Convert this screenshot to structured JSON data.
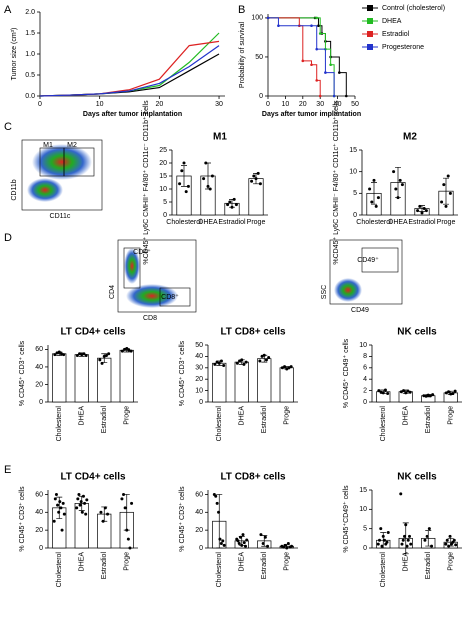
{
  "panels": [
    "A",
    "B",
    "C",
    "D",
    "E"
  ],
  "flow_labels": [
    "M1",
    "M2",
    "CD11b",
    "CD11c",
    "CD4⁺",
    "CD8⁺",
    "CD4",
    "CD8",
    "CD49⁺",
    "SSC",
    "CD49"
  ],
  "chart_data": [
    {
      "type": "line",
      "ylabel": "Tumor size (cm³)",
      "xlabel": "Days after tumor implantation",
      "x": [
        0,
        5,
        10,
        15,
        20,
        25,
        30
      ],
      "xlim": [
        0,
        31
      ],
      "xticks": [
        0,
        10,
        20,
        30
      ],
      "ylim": [
        0,
        2
      ],
      "yticks": [
        {
          "value": 0,
          "label": "0.0"
        },
        0.5,
        {
          "value": 1,
          "label": "1.0"
        },
        1.5,
        {
          "value": 2,
          "label": "2.0"
        }
      ],
      "series": [
        {
          "name": "Control (cholesterol)",
          "color": "#000000",
          "values": [
            0,
            0.02,
            0.05,
            0.1,
            0.2,
            0.6,
            1.0
          ]
        },
        {
          "name": "DHEA",
          "color": "#22bb22",
          "values": [
            0,
            0.02,
            0.05,
            0.12,
            0.25,
            0.8,
            1.5
          ]
        },
        {
          "name": "Estradiol",
          "color": "#dd2222",
          "values": [
            0,
            0.02,
            0.05,
            0.15,
            0.4,
            1.2,
            1.3
          ]
        },
        {
          "name": "Progesterone",
          "color": "#2233cc",
          "values": [
            0,
            0.02,
            0.05,
            0.12,
            0.3,
            0.7,
            1.2
          ]
        }
      ]
    },
    {
      "type": "step",
      "ylabel": "Probability of survival",
      "xlabel": "Days after tumor implantation",
      "xlim": [
        0,
        50
      ],
      "xticks": [
        0,
        10,
        20,
        30,
        40,
        50
      ],
      "ylim": [
        0,
        105
      ],
      "yticks": [
        0,
        50,
        100
      ],
      "series": [
        {
          "name": "Control (cholesterol)",
          "color": "#000000",
          "x": [
            0,
            27,
            29,
            31,
            33,
            36,
            41,
            45
          ],
          "values": [
            100,
            100,
            90,
            80,
            70,
            50,
            30,
            0
          ]
        },
        {
          "name": "DHEA",
          "color": "#22bb22",
          "x": [
            0,
            28,
            30,
            33,
            36,
            38
          ],
          "values": [
            100,
            100,
            80,
            60,
            40,
            0
          ]
        },
        {
          "name": "Estradiol",
          "color": "#dd2222",
          "x": [
            0,
            18,
            20,
            25,
            28,
            30
          ],
          "values": [
            100,
            90,
            45,
            40,
            20,
            0
          ]
        },
        {
          "name": "Progesterone",
          "color": "#2233cc",
          "x": [
            0,
            6,
            25,
            28,
            33,
            38
          ],
          "values": [
            100,
            90,
            90,
            60,
            30,
            0
          ]
        }
      ]
    },
    {
      "type": "bar",
      "title": "M1",
      "ylabel": "%CD45⁺ Ly6C CMHII⁺ F4/80⁺ CD11c⁻ CD11b⁺ cells",
      "color": "#ffffff",
      "categories": [
        "Cholesterol",
        "DHEA",
        "Estradiol",
        "Proge"
      ],
      "values": [
        15,
        15,
        4.5,
        14
      ],
      "errors": [
        4,
        5,
        1.5,
        2
      ],
      "points": [
        [
          12,
          17,
          20,
          9,
          11
        ],
        [
          14,
          20,
          11,
          10,
          15
        ],
        [
          4,
          5,
          3,
          6,
          4
        ],
        [
          13,
          15,
          14,
          16,
          12
        ]
      ],
      "ylim": [
        0,
        25
      ],
      "yticks": [
        0,
        5,
        10,
        15,
        20,
        25
      ]
    },
    {
      "type": "bar",
      "title": "M2",
      "ylabel": "%CD45⁺ Ly6C CMHII⁻ F4/80⁺ CD11c⁺ CD11b⁺ cells",
      "color": "#ffffff",
      "categories": [
        "Cholesterol",
        "DHEA",
        "Estradiol",
        "Proge"
      ],
      "values": [
        5,
        7.5,
        1.5,
        5.5
      ],
      "errors": [
        2.5,
        3.5,
        0.7,
        3
      ],
      "points": [
        [
          6,
          3,
          8,
          2,
          4
        ],
        [
          10,
          6,
          4,
          8,
          7
        ],
        [
          1,
          2,
          0.5,
          1.5,
          1
        ],
        [
          3,
          7,
          2,
          9,
          5
        ]
      ],
      "ylim": [
        0,
        15
      ],
      "yticks": [
        0,
        5,
        10,
        15
      ]
    },
    {
      "type": "bar",
      "title": "LT CD4+ cells",
      "ylabel": "% CD45⁺ CD3⁺ cells",
      "color": "#ffffff",
      "categories": [
        "Cholesterol",
        "DHEA",
        "Estradiol",
        "Proge"
      ],
      "values": [
        55,
        54,
        50,
        59
      ],
      "errors": [
        2,
        2,
        5,
        2
      ],
      "points": [
        [
          54,
          56,
          57,
          55,
          54
        ],
        [
          53,
          55,
          54,
          55,
          53
        ],
        [
          48,
          44,
          52,
          53,
          55
        ],
        [
          58,
          60,
          61,
          59,
          58
        ]
      ],
      "ylim": [
        0,
        65
      ],
      "yticks": [
        0,
        20,
        40,
        60
      ]
    },
    {
      "type": "bar",
      "title": "LT CD8+ cells",
      "ylabel": "% CD45⁺ CD3⁺ cells",
      "color": "#ffffff",
      "categories": [
        "Cholesterol",
        "DHEA",
        "Estradiol",
        "Proge"
      ],
      "values": [
        34,
        35,
        38,
        30
      ],
      "errors": [
        2,
        2,
        3,
        1
      ],
      "points": [
        [
          33,
          35,
          34,
          36,
          32
        ],
        [
          34,
          36,
          37,
          33,
          35
        ],
        [
          36,
          40,
          41,
          37,
          39
        ],
        [
          30,
          31,
          29,
          30,
          31
        ]
      ],
      "ylim": [
        0,
        50
      ],
      "yticks": [
        0,
        10,
        20,
        30,
        40,
        50
      ]
    },
    {
      "type": "bar",
      "title": "NK cells",
      "ylabel": "% CD45⁺ CD49⁺ cells",
      "color": "#ffffff",
      "categories": [
        "Cholesterol",
        "DHEA",
        "Estradiol",
        "Proge"
      ],
      "values": [
        1.8,
        1.8,
        1.1,
        1.6
      ],
      "errors": [
        0.3,
        0.3,
        0.2,
        0.3
      ],
      "points": [
        [
          2,
          1.7,
          1.6,
          2.1,
          1.5
        ],
        [
          1.8,
          2,
          1.6,
          1.9,
          1.7
        ],
        [
          1.1,
          1.0,
          1.2,
          1.1,
          1.3
        ],
        [
          1.6,
          1.8,
          1.4,
          1.5,
          1.9
        ]
      ],
      "ylim": [
        0,
        10
      ],
      "yticks": [
        0,
        2,
        4,
        6,
        8,
        10
      ]
    },
    {
      "type": "bar",
      "title": "LT CD4+ cells",
      "ylabel": "% CD45⁺ CD3⁺ cells",
      "color": "#ffffff",
      "categories": [
        "Cholesterol",
        "DHEA",
        "Estradiol",
        "Proge"
      ],
      "values": [
        45,
        50,
        38,
        40
      ],
      "errors": [
        12,
        8,
        8,
        20
      ],
      "points": [
        [
          30,
          55,
          60,
          48,
          40,
          52,
          45,
          20,
          50,
          38
        ],
        [
          45,
          55,
          60,
          48,
          52,
          40,
          58,
          50,
          38,
          54
        ],
        [
          40,
          30,
          45,
          38
        ],
        [
          55,
          60,
          45,
          20,
          10,
          0,
          50
        ]
      ],
      "ylim": [
        0,
        65
      ],
      "yticks": [
        0,
        20,
        40,
        60
      ]
    },
    {
      "type": "bar",
      "title": "LT CD8+ cells",
      "ylabel": "% CD45⁺ CD3⁺ cells",
      "color": "#ffffff",
      "categories": [
        "Cholesterol",
        "DHEA",
        "Estradiol",
        "Proge"
      ],
      "values": [
        30,
        8,
        8,
        2
      ],
      "errors": [
        30,
        5,
        6,
        2
      ],
      "points": [
        [
          60,
          58,
          50,
          40,
          10,
          5,
          8,
          3
        ],
        [
          10,
          8,
          5,
          12,
          3,
          15,
          6,
          2,
          9
        ],
        [
          15,
          5,
          12,
          2
        ],
        [
          2,
          1,
          3,
          0,
          5,
          1,
          2
        ]
      ],
      "ylim": [
        0,
        65
      ],
      "yticks": [
        0,
        20,
        40,
        60
      ]
    },
    {
      "type": "bar",
      "title": "NK cells",
      "ylabel": "% CD45⁺CD49⁺ cells",
      "color": "#ffffff",
      "categories": [
        "Cholesterol",
        "DHEA",
        "Estradiol",
        "Proge"
      ],
      "values": [
        2,
        2.5,
        2.5,
        1.5
      ],
      "errors": [
        2,
        4,
        2,
        1
      ],
      "points": [
        [
          1,
          2,
          5,
          0.5,
          3,
          2,
          1,
          1.5,
          4
        ],
        [
          14,
          1,
          2,
          3,
          6,
          0.5,
          2,
          3,
          1
        ],
        [
          2,
          3,
          5,
          0.5
        ],
        [
          1,
          2,
          0.5,
          3,
          1,
          1.5,
          2,
          0.8
        ]
      ],
      "ylim": [
        0,
        15
      ],
      "yticks": [
        0,
        5,
        10,
        15
      ]
    }
  ]
}
